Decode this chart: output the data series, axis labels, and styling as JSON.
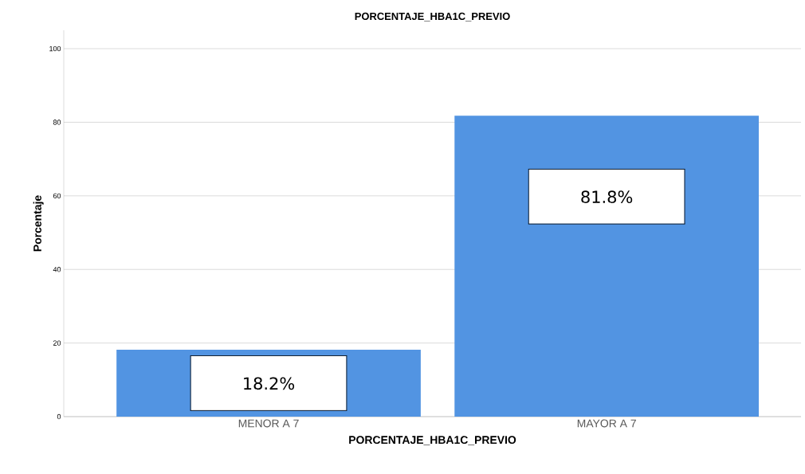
{
  "chart_data": {
    "type": "bar",
    "title": "PORCENTAJE_HBA1C_PREVIO",
    "xlabel": "PORCENTAJE_HBA1C_PREVIO",
    "ylabel": "Porcentaje",
    "categories": [
      "MENOR A 7",
      "MAYOR A 7"
    ],
    "values": [
      18.2,
      81.8
    ],
    "value_labels": [
      "18.2%",
      "81.8%"
    ],
    "color": "#5294e2",
    "ylim": [
      0,
      105
    ],
    "yticks": [
      0,
      20,
      40,
      60,
      80,
      100
    ],
    "grid": "y"
  }
}
